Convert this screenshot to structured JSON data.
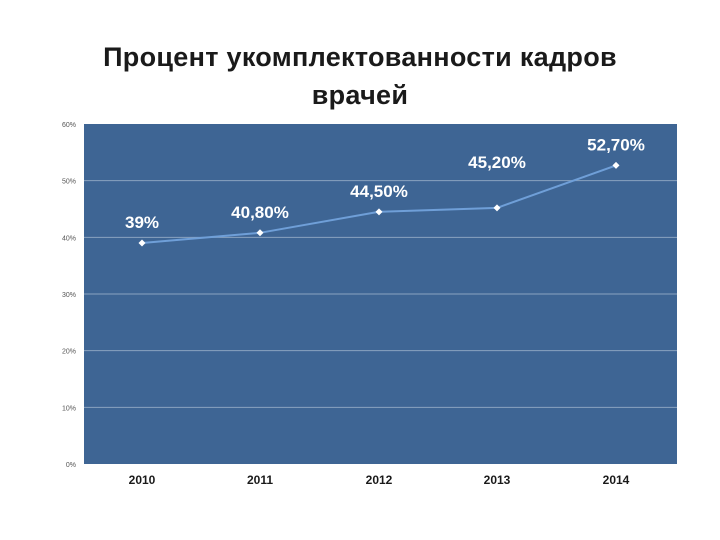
{
  "chart_data": {
    "type": "line",
    "title": "Процент укомплектованности кадров врачей",
    "categories": [
      "2010",
      "2011",
      "2012",
      "2013",
      "2014"
    ],
    "series": [
      {
        "values": [
          39.0,
          40.8,
          44.5,
          45.2,
          52.7
        ]
      }
    ],
    "data_labels": [
      "39%",
      "40,80%",
      "44,50%",
      "45,20%",
      "52,70%"
    ],
    "y_ticks": [
      "0%",
      "10%",
      "20%",
      "30%",
      "40%",
      "50%",
      "60%"
    ],
    "ylim": [
      0,
      60
    ],
    "y_tick_step": 10,
    "grid": true,
    "legend": "none",
    "colors": {
      "plot_bg": "#3e6594",
      "line": "#6f9fd8",
      "marker": "#ffffff",
      "grid": "#8aa3c0"
    }
  }
}
